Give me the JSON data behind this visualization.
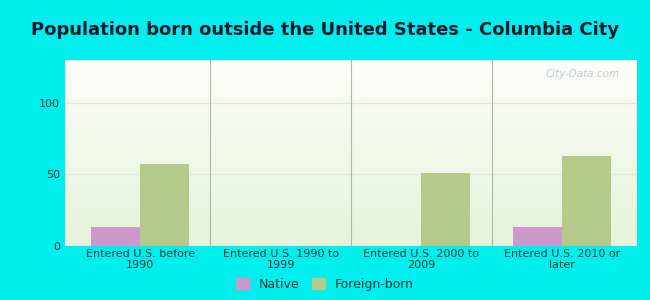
{
  "title": "Population born outside the United States - Columbia City",
  "categories": [
    "Entered U.S. before\n1990",
    "Entered U.S. 1990 to\n1999",
    "Entered U.S. 2000 to\n2009",
    "Entered U.S. 2010 or\nlater"
  ],
  "native_values": [
    13,
    0,
    0,
    13
  ],
  "foreign_values": [
    57,
    0,
    51,
    63
  ],
  "native_color": "#cc99cc",
  "foreign_color": "#b5c98a",
  "background_color": "#00eeee",
  "ylim": [
    0,
    130
  ],
  "yticks": [
    0,
    50,
    100
  ],
  "bar_width": 0.35,
  "title_fontsize": 13,
  "tick_fontsize": 8,
  "legend_labels": [
    "Native",
    "Foreign-born"
  ],
  "watermark": "City-Data.com",
  "title_color": "#1a1a2e",
  "tick_color": "#1a3a3a",
  "separator_color": "#aabbaa",
  "grid_color": "#e0e8d8"
}
